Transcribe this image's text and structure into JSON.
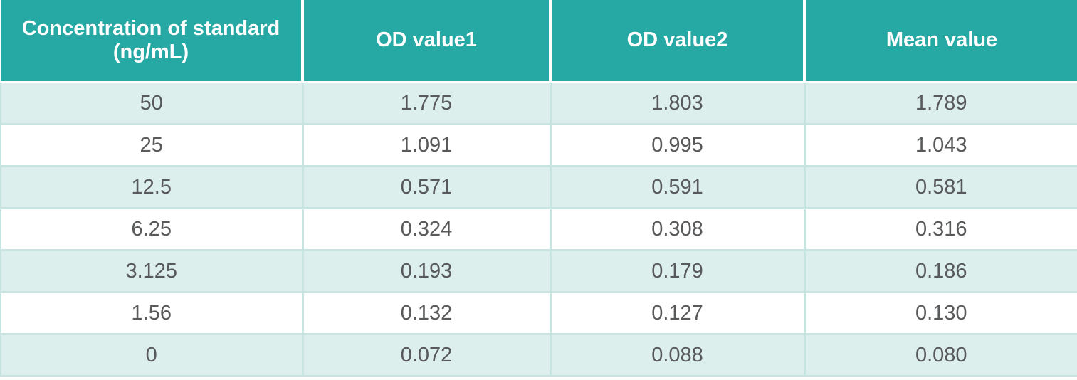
{
  "colors": {
    "header_bg": "#26a9a4",
    "header_text": "#ffffff",
    "row_alt_bg": "#dcefec",
    "row_bg": "#ffffff",
    "body_text": "#58595a",
    "divider": "#c8e4e0"
  },
  "table": {
    "columns": [
      "Concentration of standard (ng/mL)",
      "OD value1",
      "OD value2",
      "Mean value"
    ],
    "rows": [
      [
        "50",
        "1.775",
        "1.803",
        "1.789"
      ],
      [
        "25",
        "1.091",
        "0.995",
        "1.043"
      ],
      [
        "12.5",
        "0.571",
        "0.591",
        "0.581"
      ],
      [
        "6.25",
        "0.324",
        "0.308",
        "0.316"
      ],
      [
        "3.125",
        "0.193",
        "0.179",
        "0.186"
      ],
      [
        "1.56",
        "0.132",
        "0.127",
        "0.130"
      ],
      [
        "0",
        "0.072",
        "0.088",
        "0.080"
      ]
    ]
  },
  "chart_data": {
    "type": "table",
    "columns": [
      "Concentration of standard (ng/mL)",
      "OD value1",
      "OD value2",
      "Mean value"
    ],
    "rows": [
      {
        "concentration_ng_ml": 50,
        "od_value1": 1.775,
        "od_value2": 1.803,
        "mean_value": 1.789
      },
      {
        "concentration_ng_ml": 25,
        "od_value1": 1.091,
        "od_value2": 0.995,
        "mean_value": 1.043
      },
      {
        "concentration_ng_ml": 12.5,
        "od_value1": 0.571,
        "od_value2": 0.591,
        "mean_value": 0.581
      },
      {
        "concentration_ng_ml": 6.25,
        "od_value1": 0.324,
        "od_value2": 0.308,
        "mean_value": 0.316
      },
      {
        "concentration_ng_ml": 3.125,
        "od_value1": 0.193,
        "od_value2": 0.179,
        "mean_value": 0.186
      },
      {
        "concentration_ng_ml": 1.56,
        "od_value1": 0.132,
        "od_value2": 0.127,
        "mean_value": 0.13
      },
      {
        "concentration_ng_ml": 0,
        "od_value1": 0.072,
        "od_value2": 0.088,
        "mean_value": 0.08
      }
    ]
  }
}
